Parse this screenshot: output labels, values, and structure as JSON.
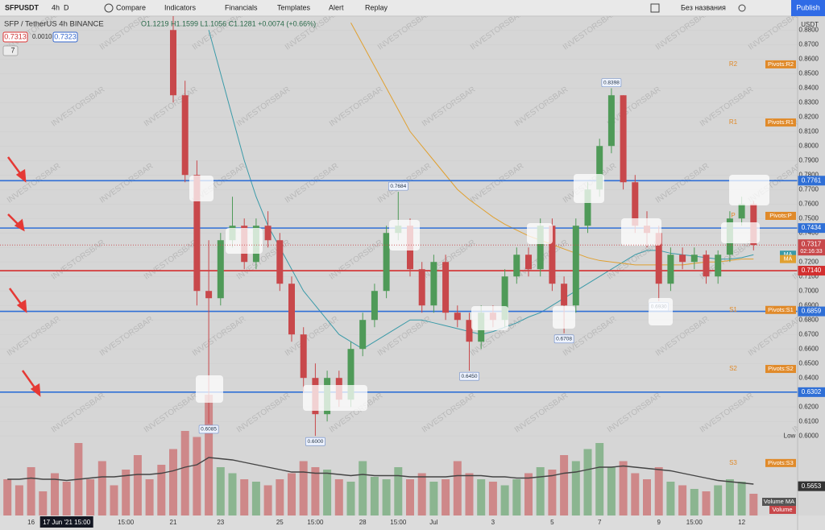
{
  "toolbar": {
    "symbol": "SFPUSDT",
    "intervals": [
      "4h",
      "D"
    ],
    "items": [
      "Compare",
      "Indicators",
      "Financials",
      "Templates",
      "Alert",
      "Replay"
    ],
    "layout_name": "Без названия",
    "publish": "Publish"
  },
  "legend": {
    "title": "SFP / TetherUS  4h  BINANCE",
    "ohlc": "O1.1219 H1.1599 L1.1056 C1.1281 +0.0074 (+0.66%)",
    "bid": "0.7313",
    "spread": "0.0010",
    "ask": "0.7323",
    "collapsed": "7"
  },
  "chart_data": {
    "type": "candlestick",
    "watermark": "INVESTORSBAR",
    "currency": "USDT",
    "up_color": "#4f9a58",
    "down_color": "#c8484b",
    "ylim": [
      0.5451,
      0.8896
    ],
    "yticks": [
      {
        "value": 0.6,
        "label": "0.6000"
      },
      {
        "value": 0.61,
        "label": "0.6100"
      },
      {
        "value": 0.62,
        "label": "0.6200"
      },
      {
        "value": 0.63,
        "label": "0.6300"
      },
      {
        "value": 0.64,
        "label": "0.6400"
      },
      {
        "value": 0.65,
        "label": "0.6500"
      },
      {
        "value": 0.66,
        "label": "0.6600"
      },
      {
        "value": 0.67,
        "label": "0.6700"
      },
      {
        "value": 0.68,
        "label": "0.6800"
      },
      {
        "value": 0.69,
        "label": "0.6900"
      },
      {
        "value": 0.7,
        "label": "0.7000"
      },
      {
        "value": 0.71,
        "label": "0.7100"
      },
      {
        "value": 0.72,
        "label": "0.7200"
      },
      {
        "value": 0.73,
        "label": "0.7300"
      },
      {
        "value": 0.74,
        "label": "0.7400"
      },
      {
        "value": 0.75,
        "label": "0.7500"
      },
      {
        "value": 0.76,
        "label": "0.7600"
      },
      {
        "value": 0.77,
        "label": "0.7700"
      },
      {
        "value": 0.78,
        "label": "0.7800"
      },
      {
        "value": 0.79,
        "label": "0.7900"
      },
      {
        "value": 0.8,
        "label": "0.8000"
      },
      {
        "value": 0.81,
        "label": "0.8100"
      },
      {
        "value": 0.82,
        "label": "0.8200"
      },
      {
        "value": 0.83,
        "label": "0.8300"
      },
      {
        "value": 0.84,
        "label": "0.8400"
      },
      {
        "value": 0.85,
        "label": "0.8500"
      },
      {
        "value": 0.86,
        "label": "0.8600"
      },
      {
        "value": 0.87,
        "label": "0.8700"
      },
      {
        "value": 0.88,
        "label": "0.8800"
      }
    ],
    "categories": [
      null,
      null,
      "16",
      null,
      null,
      "17 Jun '21 15:00",
      null,
      null,
      null,
      null,
      "15:00",
      null,
      null,
      null,
      "21",
      null,
      null,
      null,
      "23",
      null,
      null,
      null,
      null,
      "25",
      null,
      null,
      "15:00",
      null,
      null,
      null,
      "28",
      null,
      null,
      "15:00",
      null,
      null,
      "Jul",
      null,
      null,
      null,
      null,
      "3",
      null,
      null,
      null,
      null,
      "5",
      null,
      null,
      null,
      "7",
      null,
      null,
      null,
      null,
      "9",
      null,
      null,
      "15:00",
      null,
      null,
      null,
      "12",
      null
    ],
    "open": [
      null,
      null,
      null,
      null,
      null,
      null,
      null,
      null,
      null,
      null,
      null,
      null,
      null,
      null,
      0.88,
      0.835,
      0.78,
      0.7,
      0.695,
      0.735,
      0.745,
      0.72,
      0.745,
      0.735,
      0.705,
      0.67,
      0.64,
      0.615,
      0.64,
      0.625,
      0.66,
      0.68,
      0.7,
      0.74,
      0.745,
      0.715,
      0.69,
      0.72,
      0.685,
      0.68,
      0.665,
      0.685,
      0.68,
      0.71,
      0.725,
      0.715,
      0.745,
      0.705,
      0.69,
      0.745,
      0.77,
      0.8,
      0.835,
      0.775,
      0.745,
      0.74,
      0.705,
      0.725,
      0.72,
      0.725,
      0.71,
      0.725,
      0.75,
      0.76
    ],
    "high": [
      null,
      null,
      null,
      null,
      null,
      null,
      null,
      null,
      null,
      null,
      null,
      null,
      null,
      null,
      0.89,
      0.845,
      0.79,
      0.735,
      0.74,
      0.765,
      0.75,
      0.75,
      0.755,
      0.74,
      0.71,
      0.675,
      0.65,
      0.645,
      0.645,
      0.665,
      0.685,
      0.705,
      0.745,
      0.7684,
      0.75,
      0.72,
      0.725,
      0.725,
      0.69,
      0.685,
      0.69,
      0.69,
      0.715,
      0.73,
      0.73,
      0.75,
      0.75,
      0.71,
      0.75,
      0.775,
      0.805,
      0.8398,
      0.835,
      0.78,
      0.755,
      0.745,
      0.73,
      0.73,
      0.73,
      0.728,
      0.728,
      0.755,
      0.765,
      0.762
    ],
    "low": [
      null,
      null,
      null,
      null,
      null,
      null,
      null,
      null,
      null,
      null,
      null,
      null,
      null,
      null,
      0.83,
      0.775,
      0.69,
      0.6085,
      0.69,
      0.73,
      0.715,
      0.715,
      0.73,
      0.7,
      0.665,
      0.63,
      0.6,
      0.61,
      0.62,
      0.62,
      0.655,
      0.675,
      0.695,
      0.735,
      0.71,
      0.685,
      0.685,
      0.68,
      0.675,
      0.645,
      0.66,
      0.675,
      0.675,
      0.705,
      0.71,
      0.71,
      0.7,
      0.6708,
      0.685,
      0.74,
      0.765,
      0.795,
      0.77,
      0.74,
      0.73,
      0.693,
      0.7,
      0.715,
      0.715,
      0.705,
      0.705,
      0.72,
      0.745,
      0.728
    ],
    "close": [
      null,
      null,
      null,
      null,
      null,
      null,
      null,
      null,
      null,
      null,
      null,
      null,
      null,
      null,
      0.835,
      0.78,
      0.7,
      0.695,
      0.735,
      0.745,
      0.72,
      0.745,
      0.735,
      0.705,
      0.67,
      0.64,
      0.615,
      0.64,
      0.625,
      0.66,
      0.68,
      0.7,
      0.74,
      0.745,
      0.715,
      0.69,
      0.72,
      0.685,
      0.68,
      0.665,
      0.685,
      0.68,
      0.71,
      0.725,
      0.715,
      0.745,
      0.705,
      0.69,
      0.745,
      0.77,
      0.8,
      0.835,
      0.775,
      0.745,
      0.74,
      0.705,
      0.725,
      0.72,
      0.725,
      0.71,
      0.725,
      0.75,
      0.76,
      0.7317
    ],
    "high_labels": [
      null,
      null,
      null,
      null,
      null,
      null,
      null,
      null,
      null,
      null,
      null,
      null,
      null,
      null,
      null,
      null,
      null,
      null,
      null,
      null,
      null,
      null,
      null,
      null,
      null,
      null,
      null,
      null,
      null,
      null,
      null,
      null,
      null,
      "0.7684",
      null,
      null,
      null,
      null,
      null,
      null,
      null,
      null,
      null,
      null,
      null,
      null,
      null,
      null,
      null,
      null,
      null,
      "0.8398",
      null,
      null,
      null,
      null,
      null,
      null,
      null,
      null,
      null,
      null,
      null,
      null
    ],
    "low_labels": [
      null,
      null,
      null,
      null,
      null,
      null,
      null,
      null,
      null,
      null,
      null,
      null,
      null,
      null,
      null,
      null,
      null,
      "0.6085",
      null,
      null,
      null,
      null,
      null,
      null,
      null,
      null,
      "0.6000",
      null,
      null,
      null,
      null,
      null,
      null,
      null,
      null,
      null,
      null,
      null,
      null,
      "0.6450",
      null,
      null,
      null,
      null,
      null,
      null,
      null,
      "0.6708",
      null,
      null,
      null,
      null,
      null,
      null,
      null,
      "0.6930",
      null,
      null,
      null,
      null,
      null,
      null,
      null,
      null
    ],
    "ma": [
      {
        "name": "MA",
        "color": "#3a9aa8",
        "values": [
          null,
          null,
          null,
          null,
          null,
          null,
          null,
          null,
          null,
          null,
          null,
          null,
          null,
          null,
          null,
          null,
          null,
          0.88,
          0.85,
          0.82,
          0.79,
          0.765,
          0.745,
          0.73,
          0.715,
          0.7,
          0.69,
          0.68,
          0.67,
          0.665,
          0.66,
          0.665,
          0.67,
          0.675,
          0.68,
          0.68,
          0.678,
          0.676,
          0.674,
          0.672,
          0.67,
          0.672,
          0.675,
          0.678,
          0.682,
          0.685,
          0.69,
          0.695,
          0.7,
          0.705,
          0.71,
          0.715,
          0.72,
          0.725,
          0.728,
          0.728,
          0.726,
          0.725,
          0.724,
          0.723,
          0.722,
          0.722,
          0.723,
          0.725
        ]
      },
      {
        "name": "MA",
        "color": "#e0a030",
        "values": [
          null,
          null,
          null,
          null,
          null,
          null,
          null,
          null,
          null,
          null,
          null,
          null,
          null,
          null,
          null,
          null,
          null,
          null,
          null,
          null,
          null,
          null,
          null,
          null,
          null,
          null,
          null,
          null,
          null,
          0.885,
          0.87,
          0.855,
          0.84,
          0.825,
          0.81,
          0.8,
          0.79,
          0.78,
          0.77,
          0.763,
          0.757,
          0.751,
          0.746,
          0.742,
          0.738,
          0.735,
          0.732,
          0.729,
          0.726,
          0.723,
          0.721,
          0.72,
          0.719,
          0.718,
          0.718,
          0.718,
          0.718,
          0.718,
          0.719,
          0.72,
          0.72,
          0.721,
          0.722,
          0.722
        ]
      }
    ],
    "levels": [
      {
        "value": 0.7761,
        "label": "0.7761",
        "color": "#2f6fd6"
      },
      {
        "value": 0.7434,
        "label": "0.7434",
        "color": "#2f6fd6"
      },
      {
        "value": 0.714,
        "label": "0.7140",
        "color": "#d32f2f"
      },
      {
        "value": 0.6859,
        "label": "0.6859",
        "color": "#2f6fd6"
      },
      {
        "value": 0.6302,
        "label": "0.6302",
        "color": "#2f6fd6"
      }
    ],
    "pivots": [
      {
        "name": "R2",
        "label": "Pivots:R2",
        "value": 0.8563
      },
      {
        "name": "R1",
        "label": "Pivots:R1",
        "value": 0.8162
      },
      {
        "name": "P",
        "label": "Pivots:P",
        "value": 0.7518
      },
      {
        "name": "S1",
        "label": "Pivots:S1",
        "value": 0.6869
      },
      {
        "name": "S2",
        "label": "Pivots:S2",
        "value": 0.6462
      },
      {
        "name": "S3",
        "label": "Pivots:S3",
        "value": 0.5813
      }
    ],
    "pivot_color": "#e08a2a",
    "last_price": {
      "value": 0.7317,
      "label": "0.7317",
      "countdown": "02:16:33"
    },
    "low_tag": {
      "value": 0.6,
      "label": "Low"
    },
    "volume_ma_tag": {
      "value": 0.5653,
      "label": "0.5653"
    },
    "volume": {
      "name": "Volume",
      "ma_name": "Volume MA",
      "vlim": [
        0,
        100
      ],
      "values": [
        30,
        25,
        40,
        20,
        35,
        28,
        60,
        30,
        45,
        25,
        38,
        50,
        30,
        42,
        55,
        70,
        65,
        100,
        40,
        35,
        30,
        28,
        25,
        30,
        35,
        45,
        40,
        38,
        30,
        28,
        45,
        32,
        30,
        40,
        30,
        35,
        28,
        30,
        45,
        35,
        30,
        28,
        25,
        30,
        35,
        40,
        38,
        50,
        45,
        55,
        60,
        40,
        45,
        35,
        30,
        40,
        28,
        25,
        22,
        20,
        25,
        30,
        28,
        18
      ],
      "ma": [
        30,
        30,
        31,
        30,
        30,
        29,
        30,
        31,
        32,
        32,
        33,
        34,
        34,
        35,
        37,
        40,
        42,
        48,
        47,
        46,
        44,
        42,
        40,
        38,
        36,
        36,
        35,
        35,
        34,
        33,
        34,
        33,
        33,
        33,
        32,
        32,
        32,
        32,
        33,
        33,
        33,
        32,
        32,
        31,
        31,
        32,
        33,
        35,
        36,
        38,
        40,
        40,
        41,
        40,
        39,
        38,
        37,
        35,
        33,
        31,
        29,
        28,
        27,
        26
      ]
    }
  }
}
